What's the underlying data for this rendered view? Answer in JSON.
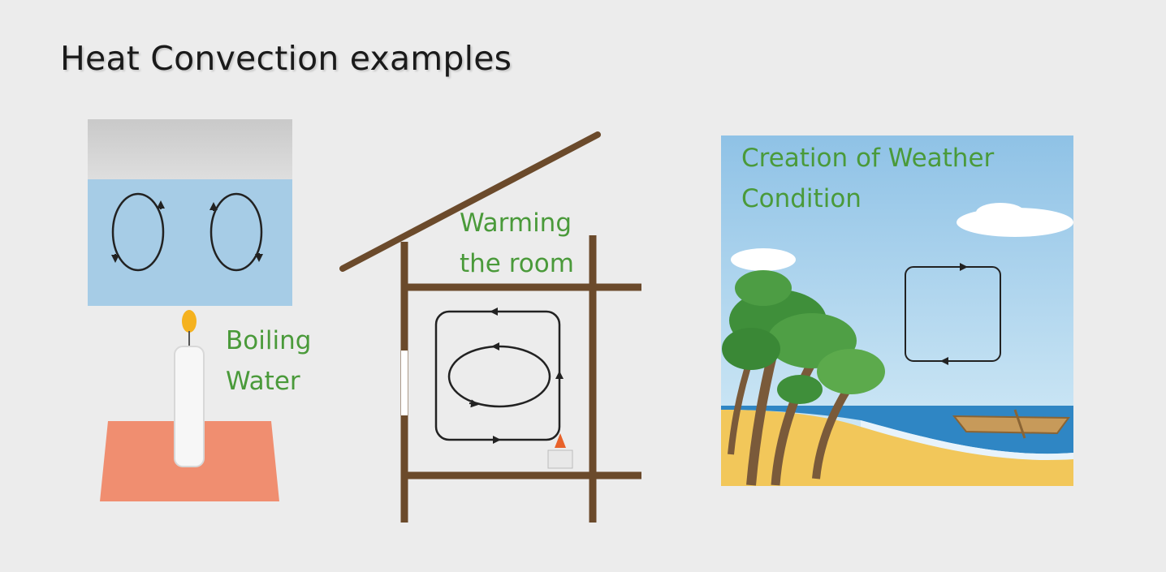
{
  "title": "Heat Convection examples",
  "examples": [
    {
      "line1": "Boiling",
      "line2": "Water"
    },
    {
      "line1": "Warming",
      "line2": "the room"
    },
    {
      "line1": "Creation of Weather",
      "line2": "Condition"
    }
  ],
  "colors": {
    "label_green": "#4a9a3a",
    "water_blue": "#a6cce6",
    "wood_brown": "#6b4a2b",
    "candle_base": "#f08e70",
    "flame": "#f5b21f",
    "sky_blue": "#9ecbe8",
    "sea_blue": "#2f86c4",
    "sand": "#f2c75a"
  }
}
